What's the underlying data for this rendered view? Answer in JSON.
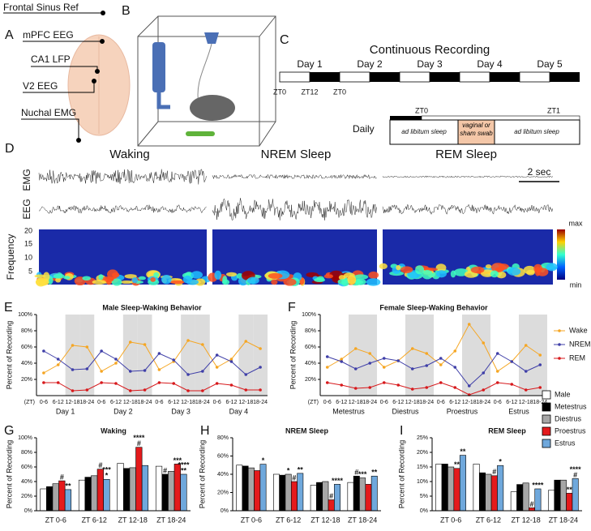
{
  "panels": {
    "A": {
      "letter": "A",
      "labels": [
        "Frontal Sinus Ref",
        "mPFC EEG",
        "CA1 LFP",
        "V2 EEG",
        "Nuchal EMG"
      ]
    },
    "B": {
      "letter": "B"
    },
    "C": {
      "letter": "C",
      "title": "Continuous Recording",
      "days": [
        "Day 1",
        "Day 2",
        "Day 3",
        "Day 4",
        "Day 5"
      ],
      "zt_labels": [
        "ZT0",
        "ZT12",
        "ZT0"
      ],
      "daily_label": "Daily",
      "daily_zt": [
        "ZT0",
        "ZT1"
      ],
      "daily_segments": [
        "ad libitum sleep",
        "vaginal or sham swab",
        "ad libitum sleep"
      ]
    },
    "D": {
      "letter": "D",
      "states": [
        "Waking",
        "NREM Sleep",
        "REM Sleep"
      ],
      "rows": [
        "EMG",
        "EEG"
      ],
      "scale": "2 sec",
      "ylabel": "Frequency",
      "yticks": [
        "20",
        "15",
        "10",
        "5"
      ],
      "colorbar": [
        "max",
        "min"
      ]
    }
  },
  "chart_data": [
    {
      "type": "line",
      "label": "E",
      "title": "Male Sleep-Waking Behavior",
      "ylabel": "Percent of Recording",
      "x_prefix": "(ZT)",
      "categories": [
        "0-6",
        "6-12",
        "12-18",
        "18-24",
        "0-6",
        "6-12",
        "12-18",
        "18-24",
        "0-6",
        "6-12",
        "12-18",
        "18-24",
        "0-6",
        "6-12",
        "12-18",
        "18-24"
      ],
      "groups": [
        "Day 1",
        "Day 2",
        "Day 3",
        "Day 4"
      ],
      "shaded": [
        "12-18",
        "18-24"
      ],
      "ylim": [
        0,
        100
      ],
      "yticks": [
        {
          "value": 20,
          "label": "20%"
        },
        {
          "value": 40,
          "label": "40%"
        },
        {
          "value": 60,
          "label": "60%"
        },
        {
          "value": 80,
          "label": "80%"
        },
        {
          "value": 100,
          "label": "100%"
        }
      ],
      "series": [
        {
          "name": "Wake",
          "color": "#f5a623",
          "values": [
            28,
            38,
            62,
            60,
            30,
            40,
            66,
            63,
            32,
            42,
            68,
            63,
            35,
            45,
            67,
            58
          ]
        },
        {
          "name": "NREM",
          "color": "#3f3fa8",
          "values": [
            55,
            45,
            32,
            33,
            55,
            45,
            30,
            31,
            52,
            44,
            26,
            30,
            50,
            42,
            26,
            35
          ]
        },
        {
          "name": "REM",
          "color": "#d7191c",
          "values": [
            16,
            16,
            6,
            7,
            16,
            15,
            6,
            7,
            16,
            15,
            6,
            6,
            15,
            13,
            7,
            7
          ]
        }
      ]
    },
    {
      "type": "line",
      "label": "F",
      "title": "Female Sleep-Waking Behavior",
      "ylabel": "Percent of Recording",
      "x_prefix": "(ZT)",
      "legend": "right",
      "categories": [
        "0-6",
        "6-12",
        "12-18",
        "18-24",
        "0-6",
        "6-12",
        "12-18",
        "18-24",
        "0-6",
        "6-12",
        "12-18",
        "18-24",
        "0-6",
        "6-12",
        "12-18",
        "18-24"
      ],
      "groups": [
        "Metestrus",
        "Diestrus",
        "Proestrus",
        "Estrus"
      ],
      "shaded": [
        "12-18",
        "18-24"
      ],
      "ylim": [
        0,
        100
      ],
      "yticks": [
        {
          "value": 20,
          "label": "20%"
        },
        {
          "value": 40,
          "label": "40%"
        },
        {
          "value": 60,
          "label": "60%"
        },
        {
          "value": 80,
          "label": "80%"
        },
        {
          "value": 100,
          "label": "100%"
        }
      ],
      "series": [
        {
          "name": "Wake",
          "color": "#f5a623",
          "values": [
            35,
            45,
            58,
            52,
            35,
            43,
            58,
            52,
            38,
            55,
            88,
            65,
            30,
            42,
            62,
            50
          ]
        },
        {
          "name": "NREM",
          "color": "#3f3fa8",
          "values": [
            48,
            42,
            33,
            40,
            46,
            43,
            33,
            37,
            46,
            35,
            12,
            28,
            52,
            42,
            30,
            38
          ]
        },
        {
          "name": "REM",
          "color": "#d7191c",
          "values": [
            16,
            13,
            9,
            10,
            16,
            13,
            8,
            10,
            16,
            10,
            1,
            7,
            16,
            14,
            7,
            10
          ]
        }
      ]
    },
    {
      "type": "bar",
      "label": "G",
      "title": "Waking",
      "ylabel": "Percent of Recording",
      "categories": [
        "ZT 0-6",
        "ZT 6-12",
        "ZT 12-18",
        "ZT 18-24"
      ],
      "ylim": [
        0,
        100
      ],
      "yticks": [
        {
          "value": 0,
          "label": "0%"
        },
        {
          "value": 20,
          "label": "20%"
        },
        {
          "value": 40,
          "label": "40%"
        },
        {
          "value": 60,
          "label": "60%"
        },
        {
          "value": 80,
          "label": "80%"
        },
        {
          "value": 100,
          "label": "100%"
        }
      ],
      "series": [
        {
          "name": "Male",
          "color": "#ffffff",
          "values": [
            30,
            42,
            65,
            61
          ]
        },
        {
          "name": "Metestrus",
          "color": "#000000",
          "values": [
            33,
            46,
            58,
            50
          ]
        },
        {
          "name": "Diestrus",
          "color": "#a6a6a6",
          "values": [
            37,
            48,
            59,
            54
          ]
        },
        {
          "name": "Proestrus",
          "color": "#e41a1c",
          "values": [
            41,
            57,
            87,
            64
          ]
        },
        {
          "name": "Estrus",
          "color": "#6fa8dc",
          "values": [
            29,
            43,
            62,
            50
          ]
        }
      ],
      "annotations": [
        {
          "text": "#",
          "category": "ZT 0-6",
          "series": "Proestrus"
        },
        {
          "text": "**",
          "category": "ZT 0-6",
          "series": "Estrus"
        },
        {
          "text": "#",
          "category": "ZT 6-12",
          "series": "Proestrus"
        },
        {
          "text": "*",
          "category": "ZT 6-12",
          "series": "Estrus"
        },
        {
          "text": "***",
          "category": "ZT 6-12",
          "series": "Estrus"
        },
        {
          "text": "#",
          "category": "ZT 12-18",
          "series": "Proestrus"
        },
        {
          "text": "****",
          "category": "ZT 12-18",
          "series": "Proestrus"
        },
        {
          "text": "#",
          "category": "ZT 18-24",
          "series": "Metestrus"
        },
        {
          "text": "***",
          "category": "ZT 18-24",
          "series": "Proestrus"
        },
        {
          "text": "**",
          "category": "ZT 18-24",
          "series": "Estrus"
        },
        {
          "text": "****",
          "category": "ZT 18-24",
          "series": "Estrus"
        }
      ]
    },
    {
      "type": "bar",
      "label": "H",
      "title": "NREM Sleep",
      "ylabel": "Percent of Recording",
      "categories": [
        "ZT 0-6",
        "ZT 6-12",
        "ZT 12-18",
        "ZT 18-24"
      ],
      "ylim": [
        0,
        80
      ],
      "yticks": [
        {
          "value": 0,
          "label": "0%"
        },
        {
          "value": 20,
          "label": "20%"
        },
        {
          "value": 40,
          "label": "40%"
        },
        {
          "value": 60,
          "label": "60%"
        },
        {
          "value": 80,
          "label": "80%"
        }
      ],
      "series": [
        {
          "name": "Male",
          "color": "#ffffff",
          "values": [
            50,
            40,
            28,
            31
          ]
        },
        {
          "name": "Metestrus",
          "color": "#000000",
          "values": [
            49,
            39,
            31,
            38
          ]
        },
        {
          "name": "Diestrus",
          "color": "#a6a6a6",
          "values": [
            47,
            40,
            32,
            36
          ]
        },
        {
          "name": "Proestrus",
          "color": "#e41a1c",
          "values": [
            44,
            32,
            12,
            29
          ]
        },
        {
          "name": "Estrus",
          "color": "#6fa8dc",
          "values": [
            51,
            41,
            29,
            38
          ]
        }
      ],
      "annotations": [
        {
          "text": "*",
          "category": "ZT 0-6",
          "series": "Estrus"
        },
        {
          "text": "#",
          "category": "ZT 6-12",
          "series": "Proestrus"
        },
        {
          "text": "*",
          "category": "ZT 6-12",
          "series": "Diestrus"
        },
        {
          "text": "**",
          "category": "ZT 6-12",
          "series": "Estrus"
        },
        {
          "text": "#",
          "category": "ZT 12-18",
          "series": "Proestrus"
        },
        {
          "text": "****",
          "category": "ZT 12-18",
          "series": "Estrus"
        },
        {
          "text": "#",
          "category": "ZT 18-24",
          "series": "Metestrus"
        },
        {
          "text": "**",
          "category": "ZT 18-24",
          "series": "Estrus"
        },
        {
          "text": "***",
          "category": "ZT 18-24",
          "series": "Diestrus"
        }
      ]
    },
    {
      "type": "bar",
      "label": "I",
      "title": "REM Sleep",
      "ylabel": "Percent of Recording",
      "legend": "upper-right",
      "categories": [
        "ZT 0-6",
        "ZT 6-12",
        "ZT 12-18",
        "ZT 18-24"
      ],
      "ylim": [
        0,
        25
      ],
      "yticks": [
        {
          "value": 0,
          "label": "0%"
        },
        {
          "value": 5,
          "label": "5%"
        },
        {
          "value": 10,
          "label": "10%"
        },
        {
          "value": 15,
          "label": "15%"
        },
        {
          "value": 20,
          "label": "20%"
        },
        {
          "value": 25,
          "label": "25%"
        }
      ],
      "series": [
        {
          "name": "Male",
          "color": "#ffffff",
          "values": [
            16,
            16,
            6.5,
            7
          ]
        },
        {
          "name": "Metestrus",
          "color": "#000000",
          "values": [
            16,
            13,
            9,
            10.5
          ]
        },
        {
          "name": "Diestrus",
          "color": "#a6a6a6",
          "values": [
            15,
            12.5,
            9.5,
            10.5
          ]
        },
        {
          "name": "Proestrus",
          "color": "#e41a1c",
          "values": [
            14.5,
            12,
            1,
            6
          ]
        },
        {
          "name": "Estrus",
          "color": "#6fa8dc",
          "values": [
            19,
            15.5,
            7.5,
            11
          ]
        }
      ],
      "annotations": [
        {
          "text": "**",
          "category": "ZT 0-6",
          "series": "Estrus"
        },
        {
          "text": "**",
          "category": "ZT 0-6",
          "series": "Proestrus"
        },
        {
          "text": "#",
          "category": "ZT 6-12",
          "series": "Proestrus"
        },
        {
          "text": "*",
          "category": "ZT 6-12",
          "series": "Estrus"
        },
        {
          "text": "#",
          "category": "ZT 12-18",
          "series": "Proestrus"
        },
        {
          "text": "****",
          "category": "ZT 12-18",
          "series": "Estrus"
        },
        {
          "text": "#",
          "category": "ZT 18-24",
          "series": "Estrus"
        },
        {
          "text": "****",
          "category": "ZT 18-24",
          "series": "Estrus"
        },
        {
          "text": "**",
          "category": "ZT 18-24",
          "series": "Proestrus"
        }
      ]
    }
  ]
}
